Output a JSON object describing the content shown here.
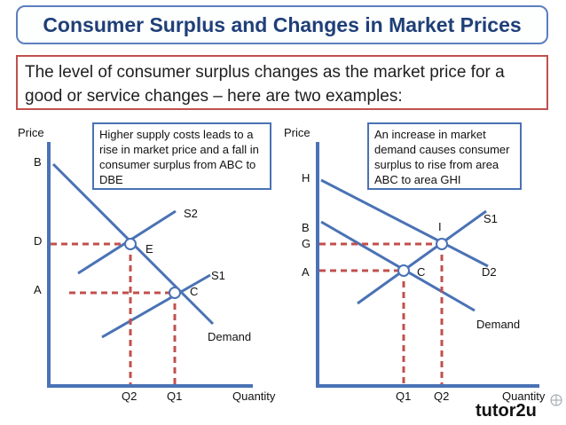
{
  "title": "Consumer Surplus and Changes in Market Prices",
  "intro": "The level of consumer surplus changes as the market price for a good or service changes – here are two examples:",
  "colors": {
    "title_border": "#5b7fbf",
    "title_text": "#1f3f78",
    "intro_border": "#c0504d",
    "axis": "#4a72b5",
    "dashed": "#c0504d"
  },
  "left_panel": {
    "y_axis_label": "Price",
    "x_axis_label": "Quantity",
    "note": "Higher supply costs leads to a rise in market price and a fall in consumer surplus from ABC to DBE",
    "labels": {
      "B": "B",
      "D": "D",
      "A": "A",
      "E": "E",
      "C": "C",
      "S2": "S2",
      "S1": "S1",
      "demand": "Demand",
      "Q2": "Q2",
      "Q1": "Q1"
    }
  },
  "right_panel": {
    "y_axis_label": "Price",
    "x_axis_label": "Quantity",
    "note": "An increase in market demand causes consumer surplus to rise from area ABC to area GHI",
    "labels": {
      "H": "H",
      "B": "B",
      "G": "G",
      "A": "A",
      "I": "I",
      "C": "C",
      "S1": "S1",
      "D2": "D2",
      "demand": "Demand",
      "Q1": "Q1",
      "Q2": "Q2"
    }
  },
  "brand": "tutor2u"
}
